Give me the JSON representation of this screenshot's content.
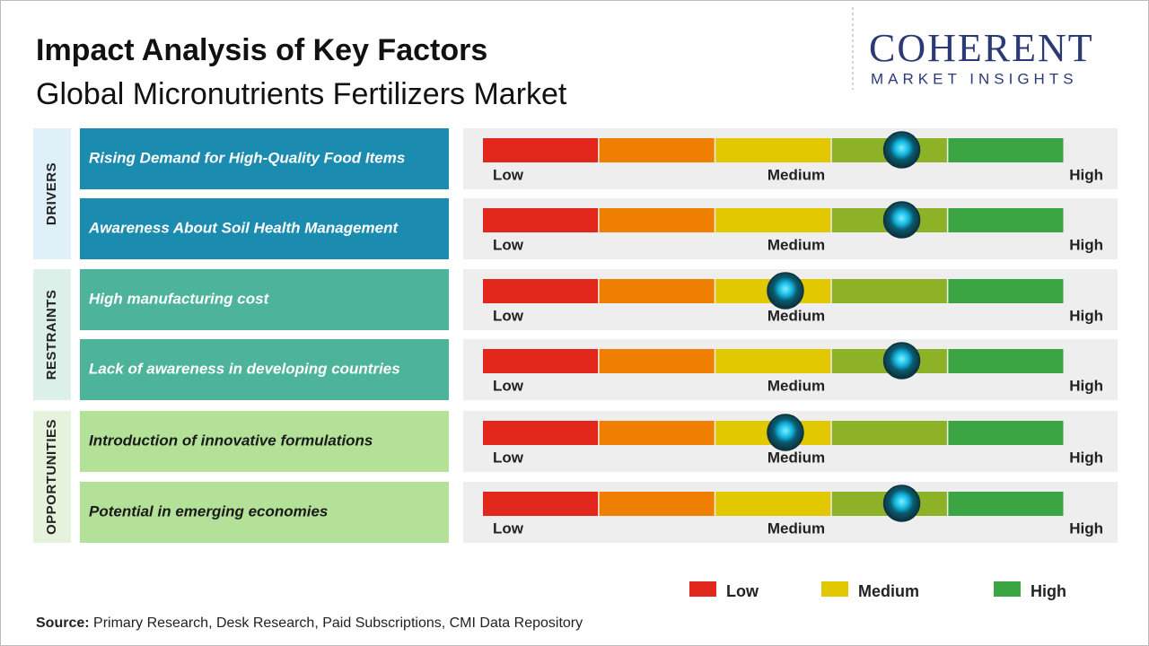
{
  "title": "Impact Analysis of Key Factors",
  "subtitle": "Global Micronutrients Fertilizers Market",
  "logo": {
    "name": "COHERENT",
    "tagline": "MARKET INSIGHTS"
  },
  "scale_labels": [
    "Low",
    "Medium",
    "High"
  ],
  "scale_colors": [
    "#e1261c",
    "#ee7f00",
    "#e2c800",
    "#8db127",
    "#3ba544"
  ],
  "groups": [
    {
      "label": "DRIVERS",
      "bg": "#dff0f8",
      "box": "#1b8bb0",
      "text_color": "#ffffff",
      "factors": [
        {
          "label": "Rising Demand for High-Quality Food Items",
          "impact": 72
        },
        {
          "label": "Awareness About Soil Health Management",
          "impact": 72
        }
      ]
    },
    {
      "label": "RESTRAINTS",
      "bg": "#dcefe9",
      "box": "#4db39b",
      "text_color": "#ffffff",
      "factors": [
        {
          "label": "High manufacturing cost",
          "impact": 52
        },
        {
          "label": "Lack of awareness in developing countries",
          "impact": 72
        }
      ]
    },
    {
      "label": "OPPORTUNITIES",
      "bg": "#e5f3dc",
      "box": "#b3e197",
      "text_color": "#1a1a1a",
      "factors": [
        {
          "label": "Introduction of innovative formulations",
          "impact": 52
        },
        {
          "label": "Potential in emerging economies",
          "impact": 72
        }
      ]
    }
  ],
  "legend": [
    {
      "label": "Low",
      "color": "#e1261c"
    },
    {
      "label": "Medium",
      "color": "#e2c800"
    },
    {
      "label": "High",
      "color": "#3ba544"
    }
  ],
  "source": {
    "label": "Source:",
    "text": "Primary Research, Desk Research, Paid Subscriptions, CMI Data Repository"
  }
}
